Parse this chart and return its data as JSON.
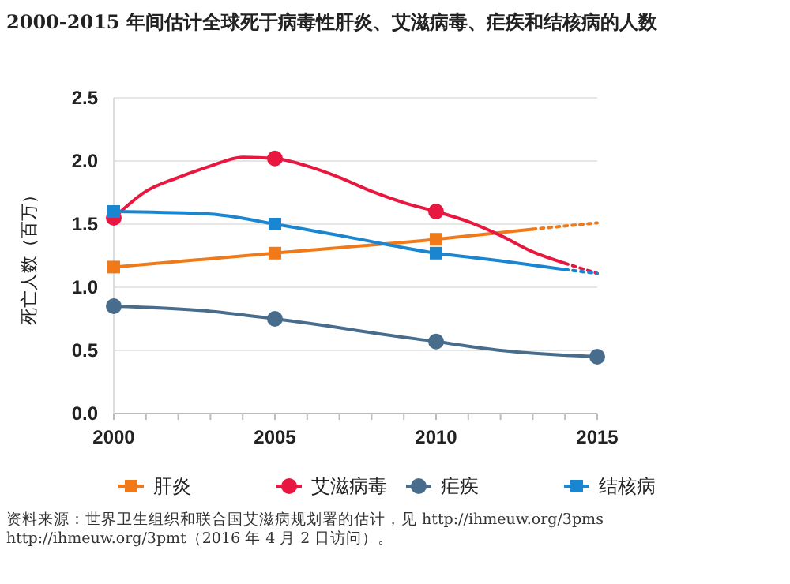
{
  "chart_data": {
    "type": "line",
    "title": "2000-2015 年间估计全球死于病毒性肝炎、艾滋病毒、疟疾和结核病的人数",
    "ylabel": "死亡人数（百万）",
    "annotations": [
      "资料来源：世界卫生组织和联合国艾滋病规划署的估计，见 http://ihmeuw.org/3pms http://ihmeuw.org/3pmt（2016 年 4 月 2 日访问）。"
    ],
    "xlim": [
      2000,
      2015
    ],
    "ylim": [
      0,
      2.5
    ],
    "xticks": [
      2000,
      {
        "value": 2001,
        "label": null
      },
      {
        "value": 2002,
        "label": null
      },
      {
        "value": 2003,
        "label": null
      },
      {
        "value": 2004,
        "label": null
      },
      2005,
      {
        "value": 2006,
        "label": null
      },
      {
        "value": 2007,
        "label": null
      },
      {
        "value": 2008,
        "label": null
      },
      {
        "value": 2009,
        "label": null
      },
      2010,
      {
        "value": 2011,
        "label": null
      },
      {
        "value": 2012,
        "label": null
      },
      {
        "value": 2013,
        "label": null
      },
      {
        "value": 2014,
        "label": null
      },
      2015
    ],
    "yticks": [
      {
        "value": 0,
        "label": "0.0"
      },
      0.5,
      {
        "value": 1,
        "label": "1.0"
      },
      1.5,
      {
        "value": 2,
        "label": "2.0"
      },
      2.5
    ],
    "grid": "y",
    "legend": "bottom",
    "series": [
      {
        "color": "#f07a1a",
        "marker": "none",
        "x": [
          2000,
          2005,
          2010,
          2013
        ],
        "values": [
          1.16,
          1.27,
          1.38,
          1.46
        ]
      },
      {
        "color": "#f07a1a",
        "marker": "none",
        "line_style": "dotted",
        "x": [
          2013,
          2015
        ],
        "values": [
          1.46,
          1.51
        ]
      },
      {
        "color": "#e8173f",
        "marker": "none",
        "x": [
          2000,
          2001,
          2002,
          2003,
          2004,
          2005,
          2006,
          2007,
          2008,
          2009,
          2010,
          2011,
          2012,
          2013,
          2014
        ],
        "values": [
          1.55,
          1.76,
          1.87,
          1.96,
          2.03,
          2.02,
          1.96,
          1.87,
          1.76,
          1.67,
          1.6,
          1.52,
          1.41,
          1.28,
          1.19
        ]
      },
      {
        "color": "#e8173f",
        "marker": "none",
        "line_style": "dotted",
        "x": [
          2014,
          2015
        ],
        "values": [
          1.19,
          1.11
        ]
      },
      {
        "color": "#476c8c",
        "marker": "none",
        "x": [
          2000,
          2003,
          2005,
          2007,
          2008,
          2010,
          2012,
          2015
        ],
        "values": [
          0.85,
          0.81,
          0.75,
          0.68,
          0.64,
          0.57,
          0.5,
          0.45
        ]
      },
      {
        "color": "#1a86d0",
        "marker": "none",
        "x": [
          2000,
          2003,
          2005,
          2007,
          2010,
          2012,
          2014
        ],
        "values": [
          1.6,
          1.58,
          1.5,
          1.41,
          1.27,
          1.21,
          1.14
        ]
      },
      {
        "color": "#1a86d0",
        "marker": "none",
        "line_style": "dotted",
        "x": [
          2014,
          2015
        ],
        "values": [
          1.14,
          1.11
        ]
      },
      {
        "type": "scatter",
        "name": "肝炎",
        "color": "#f07a1a",
        "marker": "square",
        "x": [
          2000,
          2005,
          2010
        ],
        "values": [
          1.16,
          1.27,
          1.38
        ]
      },
      {
        "type": "scatter",
        "name": "艾滋病毒",
        "color": "#e8173f",
        "marker": "circle",
        "x": [
          2000,
          2005,
          2010
        ],
        "values": [
          1.55,
          2.02,
          1.6
        ]
      },
      {
        "type": "scatter",
        "name": "疟疾",
        "color": "#476c8c",
        "marker": "circle",
        "x": [
          2000,
          2005,
          2010,
          2015
        ],
        "values": [
          0.85,
          0.75,
          0.57,
          0.45
        ]
      },
      {
        "type": "scatter",
        "name": "结核病",
        "color": "#1a86d0",
        "marker": "square",
        "x": [
          2000,
          2005,
          2010
        ],
        "values": [
          1.6,
          1.5,
          1.27
        ]
      }
    ]
  }
}
